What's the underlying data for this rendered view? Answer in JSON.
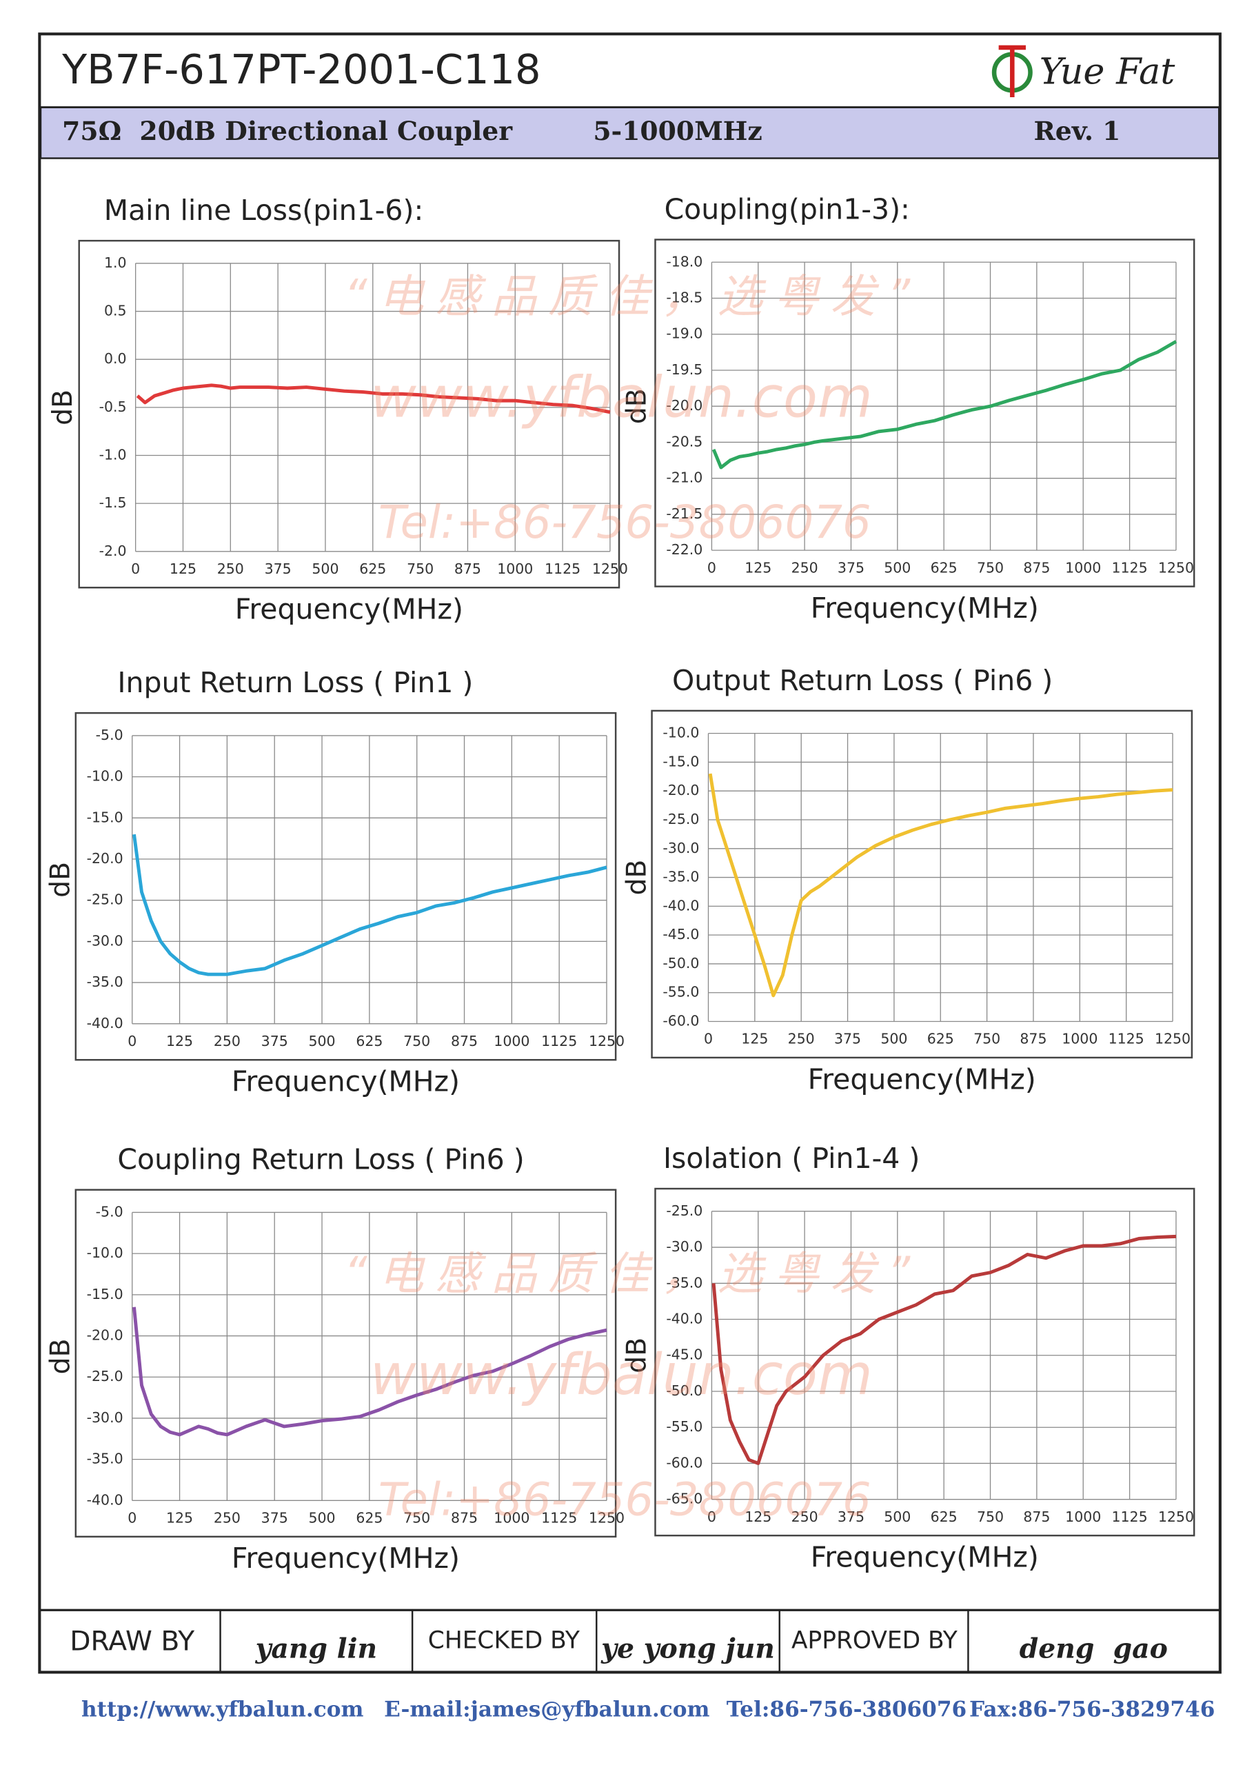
{
  "header": {
    "part_number": "YB7F-617PT-2001-C118",
    "logo": "Yue Fat",
    "description": "75Ω  20dB Directional Coupler",
    "range": "5-1000MHz",
    "revision": "Rev. 1"
  },
  "watermark": {
    "slogan": "“电感品质佳，选粤发”",
    "site": "www.yfbalun.com",
    "tel": "Tel:+86-756-3806076"
  },
  "signatures": {
    "draw_label": "DRAW BY",
    "draw_name": "yang lin",
    "check_label": "CHECKED BY",
    "check_name": "ye yong jun",
    "approve_label": "APPROVED BY",
    "approve_name": "deng  gao"
  },
  "footer": {
    "url": "http://www.yfbalun.com",
    "email": "E-mail:james@yfbalun.com",
    "tel": "Tel:86-756-3806076",
    "fax": "Fax:86-756-3829746"
  },
  "chart_data": [
    {
      "type": "line",
      "title": "Main line Loss(pin1-6):",
      "xlabel": "Frequency(MHz)",
      "ylabel": "dB",
      "x": [
        5,
        25,
        50,
        75,
        100,
        125,
        150,
        175,
        200,
        225,
        250,
        275,
        300,
        350,
        400,
        450,
        500,
        550,
        600,
        650,
        700,
        750,
        800,
        850,
        900,
        950,
        1000,
        1050,
        1100,
        1150,
        1200,
        1250
      ],
      "series": [
        {
          "color": "#e03a3a",
          "values": [
            -0.38,
            -0.45,
            -0.38,
            -0.35,
            -0.32,
            -0.3,
            -0.29,
            -0.28,
            -0.27,
            -0.28,
            -0.3,
            -0.29,
            -0.29,
            -0.29,
            -0.3,
            -0.29,
            -0.31,
            -0.33,
            -0.34,
            -0.36,
            -0.36,
            -0.37,
            -0.39,
            -0.4,
            -0.41,
            -0.43,
            -0.43,
            -0.45,
            -0.47,
            -0.48,
            -0.51,
            -0.55
          ]
        }
      ],
      "xlim": [
        0,
        1250
      ],
      "xticks": [
        0,
        125,
        250,
        375,
        500,
        625,
        750,
        875,
        1000,
        1125,
        1250
      ],
      "ylim": [
        -2,
        1
      ],
      "yticks": [
        {
          "value": 1,
          "label": "1.0"
        },
        0.5,
        {
          "value": 0,
          "label": "0.0"
        },
        -0.5,
        {
          "value": -1,
          "label": "-1.0"
        },
        -1.5,
        {
          "value": -2,
          "label": "-2.0"
        }
      ],
      "grid": true
    },
    {
      "type": "line",
      "title": "Coupling(pin1-3):",
      "xlabel": "Frequency(MHz)",
      "ylabel": "dB",
      "x": [
        5,
        25,
        50,
        75,
        100,
        125,
        150,
        175,
        200,
        225,
        250,
        275,
        300,
        350,
        400,
        450,
        500,
        550,
        600,
        650,
        700,
        750,
        800,
        850,
        900,
        950,
        1000,
        1050,
        1100,
        1150,
        1200,
        1250
      ],
      "series": [
        {
          "color": "#2ea860",
          "values": [
            -20.6,
            -20.85,
            -20.75,
            -20.7,
            -20.68,
            -20.65,
            -20.63,
            -20.6,
            -20.58,
            -20.55,
            -20.53,
            -20.5,
            -20.48,
            -20.45,
            -20.42,
            -20.35,
            -20.32,
            -20.25,
            -20.2,
            -20.12,
            -20.05,
            -20.0,
            -19.92,
            -19.85,
            -19.78,
            -19.7,
            -19.63,
            -19.55,
            -19.5,
            -19.35,
            -19.25,
            -19.1
          ]
        }
      ],
      "xlim": [
        0,
        1250
      ],
      "xticks": [
        0,
        125,
        250,
        375,
        500,
        625,
        750,
        875,
        1000,
        1125,
        1250
      ],
      "ylim": [
        -22,
        -18
      ],
      "yticks": [
        {
          "value": -18,
          "label": "-18.0"
        },
        -18.5,
        {
          "value": -19,
          "label": "-19.0"
        },
        -19.5,
        {
          "value": -20,
          "label": "-20.0"
        },
        -20.5,
        {
          "value": -21,
          "label": "-21.0"
        },
        -21.5,
        {
          "value": -22,
          "label": "-22.0"
        }
      ],
      "grid": true
    },
    {
      "type": "line",
      "title": "Input Return Loss ( Pin1 )",
      "xlabel": "Frequency(MHz)",
      "ylabel": "dB",
      "x": [
        5,
        25,
        50,
        75,
        100,
        125,
        150,
        175,
        200,
        225,
        250,
        275,
        300,
        350,
        400,
        450,
        500,
        550,
        600,
        650,
        700,
        750,
        800,
        850,
        900,
        950,
        1000,
        1050,
        1100,
        1150,
        1200,
        1250
      ],
      "series": [
        {
          "color": "#2aa6d8",
          "values": [
            -17,
            -24,
            -27.5,
            -30,
            -31.5,
            -32.5,
            -33.3,
            -33.8,
            -34,
            -34,
            -34,
            -33.8,
            -33.6,
            -33.3,
            -32.3,
            -31.5,
            -30.5,
            -29.5,
            -28.5,
            -27.8,
            -27,
            -26.5,
            -25.7,
            -25.3,
            -24.7,
            -24,
            -23.5,
            -23,
            -22.5,
            -22,
            -21.6,
            -21
          ]
        }
      ],
      "xlim": [
        0,
        1250
      ],
      "xticks": [
        0,
        125,
        250,
        375,
        500,
        625,
        750,
        875,
        1000,
        1125,
        1250
      ],
      "ylim": [
        -40,
        -5
      ],
      "yticks": [
        {
          "value": -5,
          "label": "-5.0"
        },
        {
          "value": -10,
          "label": "-10.0"
        },
        {
          "value": -15,
          "label": "-15.0"
        },
        {
          "value": -20,
          "label": "-20.0"
        },
        {
          "value": -25,
          "label": "-25.0"
        },
        {
          "value": -30,
          "label": "-30.0"
        },
        {
          "value": -35,
          "label": "-35.0"
        },
        {
          "value": -40,
          "label": "-40.0"
        }
      ],
      "grid": true
    },
    {
      "type": "line",
      "title": "Output Return Loss ( Pin6 )",
      "xlabel": "Frequency(MHz)",
      "ylabel": "dB",
      "x": [
        5,
        25,
        50,
        75,
        100,
        125,
        150,
        175,
        200,
        225,
        250,
        275,
        300,
        350,
        400,
        450,
        500,
        550,
        600,
        650,
        700,
        750,
        800,
        850,
        900,
        950,
        1000,
        1050,
        1100,
        1150,
        1200,
        1250
      ],
      "series": [
        {
          "color": "#f0c030",
          "values": [
            -17,
            -25,
            -30,
            -35,
            -40,
            -45,
            -50,
            -55.5,
            -52,
            -45,
            -39,
            -37.5,
            -36.5,
            -34,
            -31.5,
            -29.5,
            -28,
            -26.8,
            -25.8,
            -25,
            -24.3,
            -23.7,
            -23,
            -22.6,
            -22.2,
            -21.7,
            -21.3,
            -21,
            -20.6,
            -20.3,
            -20,
            -19.8
          ]
        }
      ],
      "xlim": [
        0,
        1250
      ],
      "xticks": [
        0,
        125,
        250,
        375,
        500,
        625,
        750,
        875,
        1000,
        1125,
        1250
      ],
      "ylim": [
        -60,
        -10
      ],
      "yticks": [
        {
          "value": -10,
          "label": "-10.0"
        },
        {
          "value": -15,
          "label": "-15.0"
        },
        {
          "value": -20,
          "label": "-20.0"
        },
        {
          "value": -25,
          "label": "-25.0"
        },
        {
          "value": -30,
          "label": "-30.0"
        },
        {
          "value": -35,
          "label": "-35.0"
        },
        {
          "value": -40,
          "label": "-40.0"
        },
        {
          "value": -45,
          "label": "-45.0"
        },
        {
          "value": -50,
          "label": "-50.0"
        },
        {
          "value": -55,
          "label": "-55.0"
        },
        {
          "value": -60,
          "label": "-60.0"
        }
      ],
      "grid": true
    },
    {
      "type": "line",
      "title": "Coupling Return Loss ( Pin6 )",
      "xlabel": "Frequency(MHz)",
      "ylabel": "dB",
      "x": [
        5,
        25,
        50,
        75,
        100,
        125,
        150,
        175,
        200,
        225,
        250,
        275,
        300,
        350,
        400,
        450,
        500,
        550,
        600,
        650,
        700,
        750,
        800,
        850,
        900,
        950,
        1000,
        1050,
        1100,
        1150,
        1200,
        1250
      ],
      "series": [
        {
          "color": "#8a52a8",
          "values": [
            -16.5,
            -26,
            -29.5,
            -31,
            -31.7,
            -32,
            -31.5,
            -31,
            -31.3,
            -31.8,
            -32,
            -31.5,
            -31,
            -30.2,
            -31,
            -30.7,
            -30.3,
            -30.1,
            -29.8,
            -29,
            -28,
            -27.2,
            -26.5,
            -25.6,
            -24.8,
            -24.3,
            -23.4,
            -22.4,
            -21.3,
            -20.4,
            -19.8,
            -19.3
          ]
        }
      ],
      "xlim": [
        0,
        1250
      ],
      "xticks": [
        0,
        125,
        250,
        375,
        500,
        625,
        750,
        875,
        1000,
        1125,
        1250
      ],
      "ylim": [
        -40,
        -5
      ],
      "yticks": [
        {
          "value": -5,
          "label": "-5.0"
        },
        {
          "value": -10,
          "label": "-10.0"
        },
        {
          "value": -15,
          "label": "-15.0"
        },
        {
          "value": -20,
          "label": "-20.0"
        },
        {
          "value": -25,
          "label": "-25.0"
        },
        {
          "value": -30,
          "label": "-30.0"
        },
        {
          "value": -35,
          "label": "-35.0"
        },
        {
          "value": -40,
          "label": "-40.0"
        }
      ],
      "grid": true
    },
    {
      "type": "line",
      "title": "Isolation ( Pin1-4 )",
      "xlabel": "Frequency(MHz)",
      "ylabel": "dB",
      "x": [
        5,
        25,
        50,
        75,
        100,
        125,
        150,
        175,
        200,
        225,
        250,
        275,
        300,
        350,
        400,
        450,
        500,
        550,
        600,
        650,
        700,
        750,
        800,
        850,
        900,
        950,
        1000,
        1050,
        1100,
        1150,
        1200,
        1250
      ],
      "series": [
        {
          "color": "#b83a3a",
          "values": [
            -35,
            -47,
            -54,
            -57,
            -59.5,
            -60,
            -56,
            -52,
            -50,
            -49,
            -48,
            -46.5,
            -45,
            -43,
            -42,
            -40,
            -39,
            -38,
            -36.5,
            -36,
            -34,
            -33.5,
            -32.5,
            -31,
            -31.5,
            -30.5,
            -29.8,
            -29.8,
            -29.5,
            -28.8,
            -28.6,
            -28.5
          ]
        }
      ],
      "xlim": [
        0,
        1250
      ],
      "xticks": [
        0,
        125,
        250,
        375,
        500,
        625,
        750,
        875,
        1000,
        1125,
        1250
      ],
      "ylim": [
        -65,
        -25
      ],
      "yticks": [
        {
          "value": -25,
          "label": "-25.0"
        },
        {
          "value": -30,
          "label": "-30.0"
        },
        {
          "value": -35,
          "label": "-35.0"
        },
        {
          "value": -40,
          "label": "-40.0"
        },
        {
          "value": -45,
          "label": "-45.0"
        },
        {
          "value": -50,
          "label": "-50.0"
        },
        {
          "value": -55,
          "label": "-55.0"
        },
        {
          "value": -60,
          "label": "-60.0"
        },
        {
          "value": -65,
          "label": "-65.0"
        }
      ],
      "grid": true
    }
  ]
}
